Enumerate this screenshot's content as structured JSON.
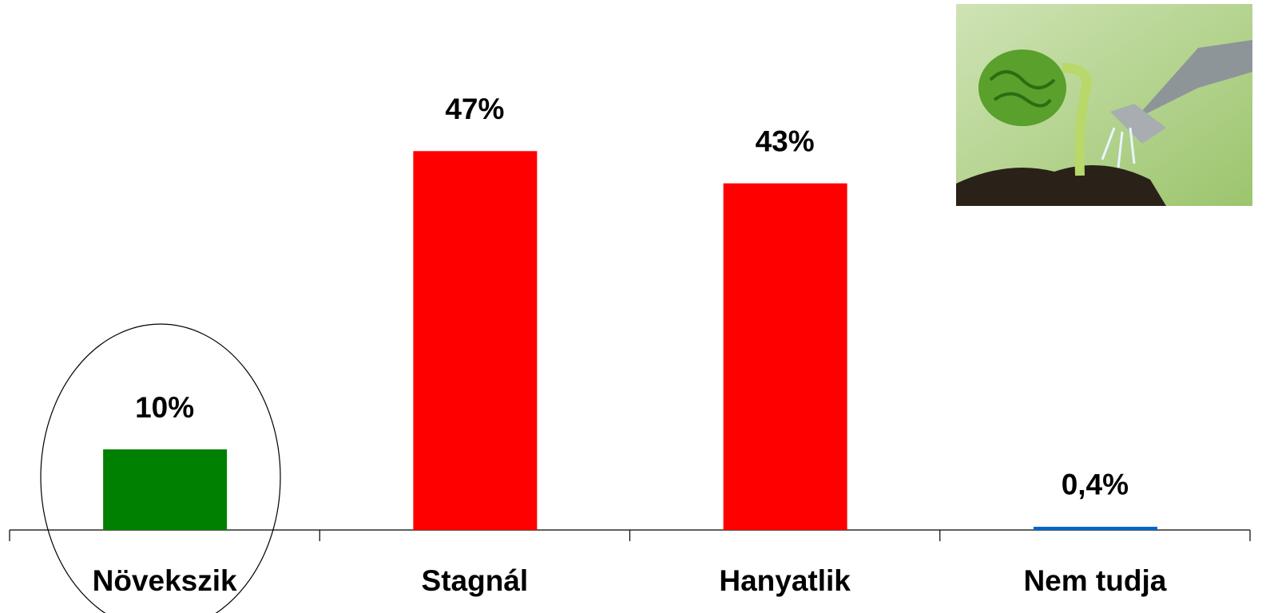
{
  "chart_data": {
    "type": "bar",
    "categories": [
      "Növekszik",
      "Stagnál",
      "Hanyatlik",
      "Nem tudja"
    ],
    "values": [
      10,
      47,
      43,
      0.4
    ],
    "value_labels": [
      "10%",
      "47%",
      "43%",
      "0,4%"
    ],
    "colors": [
      "#008000",
      "#ff0000",
      "#ff0000",
      "#0066cc"
    ]
  }
}
